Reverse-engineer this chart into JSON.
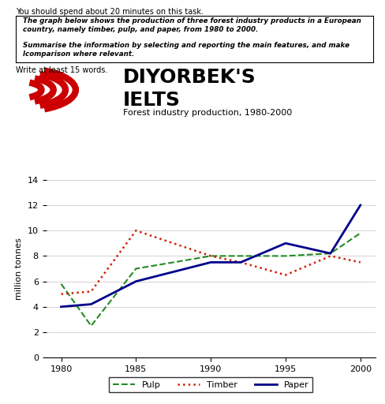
{
  "title": "Forest industry production, 1980-2000",
  "ylabel": "million tonnes",
  "header_text1": "The graph below shows the production of three forest industry products in a European\ncountry, namely timber, pulp, and paper, from 1980 to 2000.",
  "header_text2": "Summarise the information by selecting and reporting the main features, and make\nlcomparison where relevant.",
  "top_text": "You should spend about 20 minutes on this task.",
  "write_text": "Write at least 15 words.",
  "pulp_years": [
    1980,
    1982,
    1985,
    1990,
    1992,
    1995,
    1998,
    2000
  ],
  "pulp_values": [
    5.8,
    2.5,
    7.0,
    8.0,
    8.0,
    8.0,
    8.2,
    9.8
  ],
  "timber_years": [
    1980,
    1982,
    1985,
    1990,
    1992,
    1995,
    1998,
    2000
  ],
  "timber_values": [
    5.0,
    5.2,
    10.0,
    8.0,
    7.5,
    6.5,
    8.0,
    7.5
  ],
  "paper_years": [
    1980,
    1982,
    1985,
    1990,
    1992,
    1995,
    1998,
    2000
  ],
  "paper_values": [
    4.0,
    4.2,
    6.0,
    7.5,
    7.5,
    9.0,
    8.2,
    12.0
  ],
  "ylim": [
    0,
    14
  ],
  "yticks": [
    0,
    2,
    4,
    6,
    8,
    10,
    12,
    14
  ],
  "xticks": [
    1980,
    1985,
    1990,
    1995,
    2000
  ],
  "pulp_color": "#228B22",
  "timber_color": "#cc2200",
  "paper_color": "#00008b",
  "background_color": "#ffffff",
  "watermark_line1": "DIYORBEK'S",
  "watermark_line2": "IELTS",
  "watermark_color": "#000000"
}
